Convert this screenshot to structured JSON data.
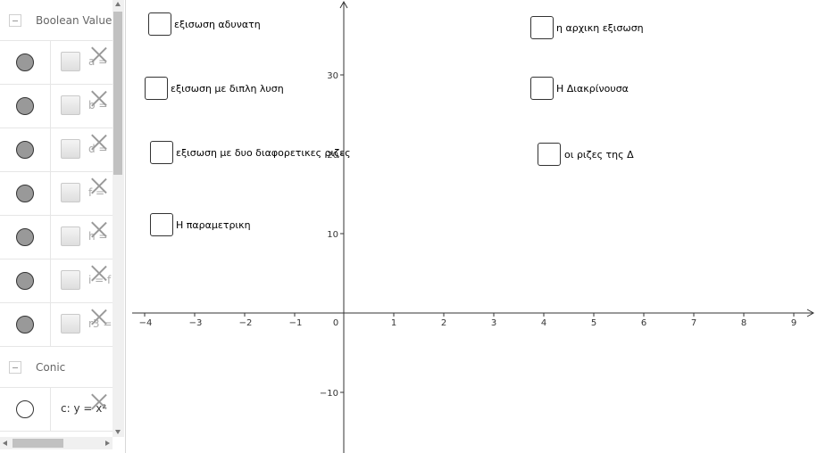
{
  "algebra": {
    "categories": {
      "boolean": {
        "label": "Boolean Value"
      },
      "conic": {
        "label": "Conic"
      }
    },
    "boolean_rows": [
      {
        "text": "a ="
      },
      {
        "text": "b ="
      },
      {
        "text": "d ="
      },
      {
        "text": "f = "
      },
      {
        "text": "h ="
      },
      {
        "text": "i = f"
      },
      {
        "text": "r3 ="
      }
    ],
    "conic_rows": [
      {
        "text": "c: y = x²"
      }
    ]
  },
  "graphics": {
    "x_ticks": [
      "−4",
      "−3",
      "−2",
      "−1",
      "0",
      "1",
      "2",
      "3",
      "4",
      "5",
      "6",
      "7",
      "8",
      "9"
    ],
    "y_ticks": [
      "30",
      "20",
      "10",
      "−10"
    ],
    "checkboxes": [
      {
        "label": "εξισωση αδυνατη"
      },
      {
        "label": "εξισωση με διπλη λυση"
      },
      {
        "label": "εξισωση με δυο διαφορετικες ριζες"
      },
      {
        "label": "Η παραμετρικη"
      },
      {
        "label": "η αρχικη εξισωση"
      },
      {
        "label": "Η Διακρίνουσα"
      },
      {
        "label": "οι ριζες της Δ"
      }
    ]
  }
}
